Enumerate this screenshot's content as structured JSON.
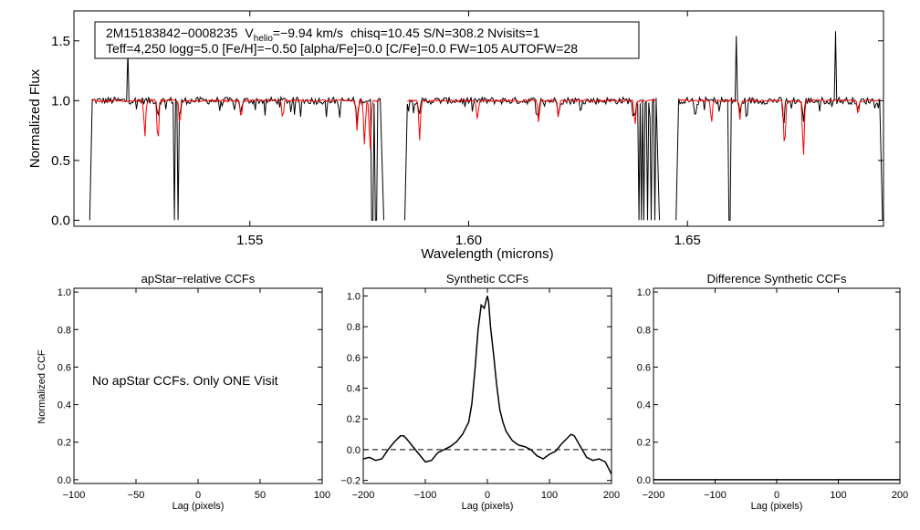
{
  "chart_data": [
    {
      "id": "spectrum",
      "type": "line",
      "xlabel": "Wavelength (microns)",
      "ylabel": "Normalized Flux",
      "xlim": [
        1.5098,
        1.6948
      ],
      "ylim": [
        -0.05,
        1.75
      ],
      "xticks": [
        1.55,
        1.6,
        1.65
      ],
      "xtick_labels": [
        "1.55",
        "1.60",
        "1.65"
      ],
      "yticks": [
        0.0,
        0.5,
        1.0,
        1.5
      ],
      "ytick_labels": [
        "0.0",
        "0.5",
        "1.0",
        "1.5"
      ],
      "chips": [
        [
          1.514,
          1.58
        ],
        [
          1.586,
          1.643
        ],
        [
          1.648,
          1.694
        ]
      ],
      "bad_pixels": [
        1.5327,
        1.5332,
        1.5337,
        1.5567,
        1.557,
        1.5778,
        1.5782,
        1.5786,
        1.579,
        1.6357,
        1.639,
        1.6395,
        1.64,
        1.641,
        1.6418,
        1.6425,
        1.6595,
        1.6598
      ],
      "emission_spikes": [
        [
          1.5222,
          1.42
        ],
        [
          1.6063,
          1.28
        ],
        [
          1.6611,
          1.54
        ],
        [
          1.6839,
          1.58
        ]
      ],
      "observed_absorption": [
        [
          1.529,
          0.88
        ],
        [
          1.534,
          0.86
        ],
        [
          1.548,
          0.9
        ],
        [
          1.5705,
          0.88
        ],
        [
          1.5745,
          0.8
        ],
        [
          1.5888,
          0.86
        ],
        [
          1.616,
          0.88
        ],
        [
          1.6205,
          0.9
        ],
        [
          1.638,
          0.86
        ],
        [
          1.6435,
          0.88
        ],
        [
          1.652,
          0.9
        ],
        [
          1.662,
          0.88
        ],
        [
          1.672,
          0.8
        ],
        [
          1.6765,
          0.82
        ],
        [
          1.689,
          0.9
        ]
      ],
      "model_absorption": [
        [
          1.526,
          0.7
        ],
        [
          1.529,
          0.65
        ],
        [
          1.534,
          0.8
        ],
        [
          1.548,
          0.85
        ],
        [
          1.5575,
          0.85
        ],
        [
          1.5745,
          0.75
        ],
        [
          1.5762,
          0.62
        ],
        [
          1.5775,
          0.58
        ],
        [
          1.5888,
          0.68
        ],
        [
          1.602,
          0.85
        ],
        [
          1.616,
          0.82
        ],
        [
          1.6205,
          0.85
        ],
        [
          1.638,
          0.8
        ],
        [
          1.6555,
          0.82
        ],
        [
          1.662,
          0.85
        ],
        [
          1.6722,
          0.6
        ],
        [
          1.6765,
          0.52
        ],
        [
          1.689,
          0.88
        ]
      ],
      "series": [
        {
          "name": "observed spectrum",
          "color": "#000000"
        },
        {
          "name": "synthetic model",
          "color": "#ff0000"
        }
      ]
    },
    {
      "id": "apstar-ccf",
      "type": "line",
      "title": "apStar−relative CCFs",
      "xlabel": "Lag (pixels)",
      "ylabel": "Normalized CCF",
      "xlim": [
        -100,
        100
      ],
      "ylim": [
        -0.02,
        1.02
      ],
      "xticks": [
        -100,
        -50,
        0,
        50,
        100
      ],
      "xtick_labels": [
        "−100",
        "−50",
        "0",
        "50",
        "100"
      ],
      "yticks": [
        0.0,
        0.2,
        0.4,
        0.6,
        0.8,
        1.0
      ],
      "ytick_labels": [
        "0.0",
        "0.2",
        "0.4",
        "0.6",
        "0.8",
        "1.0"
      ],
      "annotation": "No apStar CCFs.  Only ONE Visit",
      "series": []
    },
    {
      "id": "synthetic-ccf",
      "type": "line",
      "title": "Synthetic CCFs",
      "xlabel": "Lag (pixels)",
      "ylabel": "",
      "xlim": [
        -200,
        200
      ],
      "ylim": [
        -0.22,
        1.05
      ],
      "xticks": [
        -200,
        -100,
        0,
        100,
        200
      ],
      "xtick_labels": [
        "−200",
        "−100",
        "0",
        "100",
        "200"
      ],
      "yticks": [
        -0.2,
        0.0,
        0.2,
        0.4,
        0.6,
        0.8,
        1.0
      ],
      "ytick_labels": [
        "−0.2",
        "0.0",
        "0.2",
        "0.4",
        "0.6",
        "0.8",
        "1.0"
      ],
      "reference_line": 0.0,
      "series": [
        {
          "name": "synthetic CCF",
          "x": [
            -200,
            -190,
            -180,
            -170,
            -160,
            -150,
            -140,
            -135,
            -130,
            -120,
            -110,
            -100,
            -90,
            -80,
            -70,
            -60,
            -50,
            -40,
            -30,
            -25,
            -20,
            -15,
            -10,
            -5,
            -2,
            0,
            2,
            5,
            10,
            15,
            20,
            25,
            30,
            40,
            50,
            60,
            70,
            80,
            90,
            100,
            110,
            120,
            130,
            135,
            140,
            150,
            160,
            170,
            180,
            190,
            200
          ],
          "y": [
            -0.06,
            -0.05,
            -0.07,
            -0.06,
            0.0,
            0.05,
            0.09,
            0.09,
            0.07,
            0.02,
            -0.03,
            -0.08,
            -0.07,
            -0.02,
            0.0,
            0.02,
            0.05,
            0.1,
            0.18,
            0.3,
            0.52,
            0.78,
            0.94,
            0.92,
            0.97,
            1.0,
            0.96,
            0.8,
            0.62,
            0.42,
            0.26,
            0.18,
            0.12,
            0.06,
            0.03,
            0.02,
            0.0,
            -0.04,
            -0.06,
            -0.03,
            -0.01,
            0.04,
            0.08,
            0.1,
            0.09,
            0.02,
            -0.05,
            -0.07,
            -0.06,
            -0.08,
            -0.16
          ]
        }
      ]
    },
    {
      "id": "difference-ccf",
      "type": "line",
      "title": "Difference Synthetic CCFs",
      "xlabel": "Lag (pixels)",
      "ylabel": "",
      "xlim": [
        -200,
        200
      ],
      "ylim": [
        -0.02,
        1.02
      ],
      "xticks": [
        -200,
        -100,
        0,
        100,
        200
      ],
      "xtick_labels": [
        "−200",
        "−100",
        "0",
        "100",
        "200"
      ],
      "yticks": [
        0.0,
        0.2,
        0.4,
        0.6,
        0.8,
        1.0
      ],
      "ytick_labels": [
        "0.0",
        "0.2",
        "0.4",
        "0.6",
        "0.8",
        "1.0"
      ],
      "series": [
        {
          "name": "difference CCF",
          "x": [
            -200,
            200
          ],
          "y": [
            0.0,
            0.0
          ]
        }
      ]
    }
  ],
  "info_box": {
    "star_id": "2M15183842−0008235",
    "vhelio_prefix": "V",
    "vhelio_subscript": "helio",
    "vhelio_value": "=−9.94 km/s",
    "rest_line1": "chisq=10.45  S/N=308.2  Nvisits=1",
    "line2": "Teff=4,250 logg=5.0 [Fe/H]=−0.50 [alpha/Fe]=0.0 [C/Fe]=0.0 FW=105 AUTOFW=28"
  }
}
